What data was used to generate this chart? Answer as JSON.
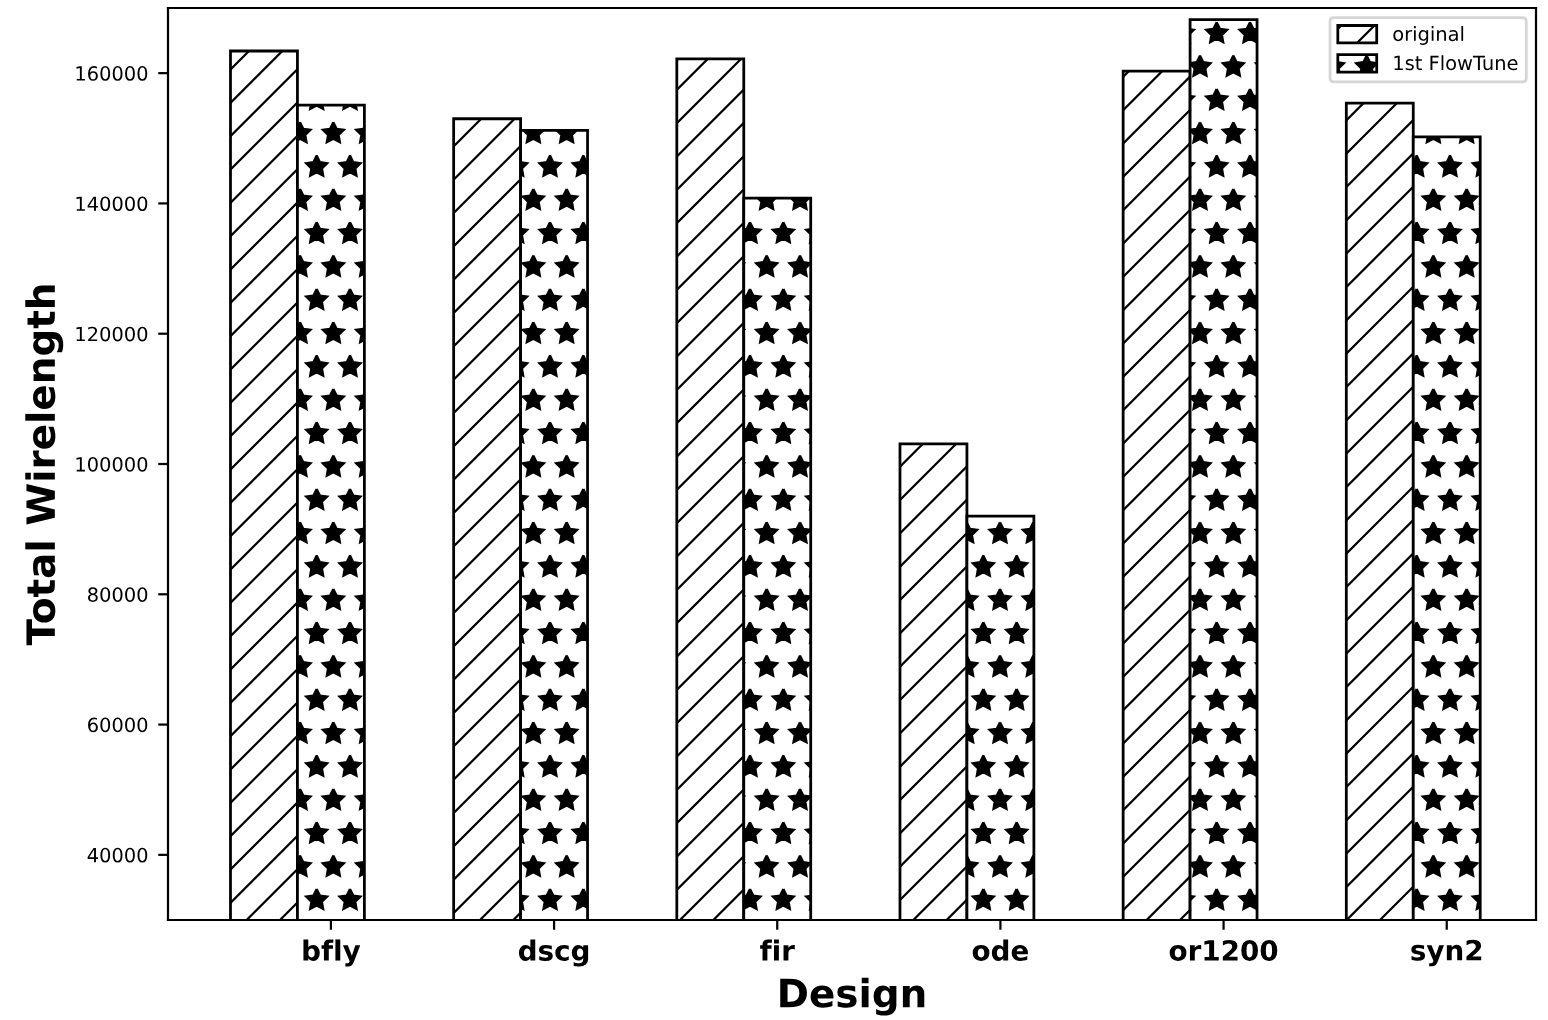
{
  "chart_data": {
    "type": "bar",
    "xlabel": "Design",
    "ylabel": "Total Wirelength",
    "categories": [
      "bfly",
      "dscg",
      "fir",
      "ode",
      "or1200",
      "syn2"
    ],
    "series": [
      {
        "name": "original",
        "color": "#000000",
        "values": [
          163400,
          153000,
          162200,
          103100,
          160300,
          155400
        ]
      },
      {
        "name": "1st FlowTune",
        "color": "#000000",
        "values": [
          155100,
          151200,
          140800,
          92000,
          168200,
          150200
        ]
      }
    ],
    "ylim": [
      30000,
      170000
    ],
    "yticks": [
      40000,
      60000,
      80000,
      100000,
      120000,
      140000,
      160000
    ],
    "grid": false,
    "legend": "top right"
  }
}
